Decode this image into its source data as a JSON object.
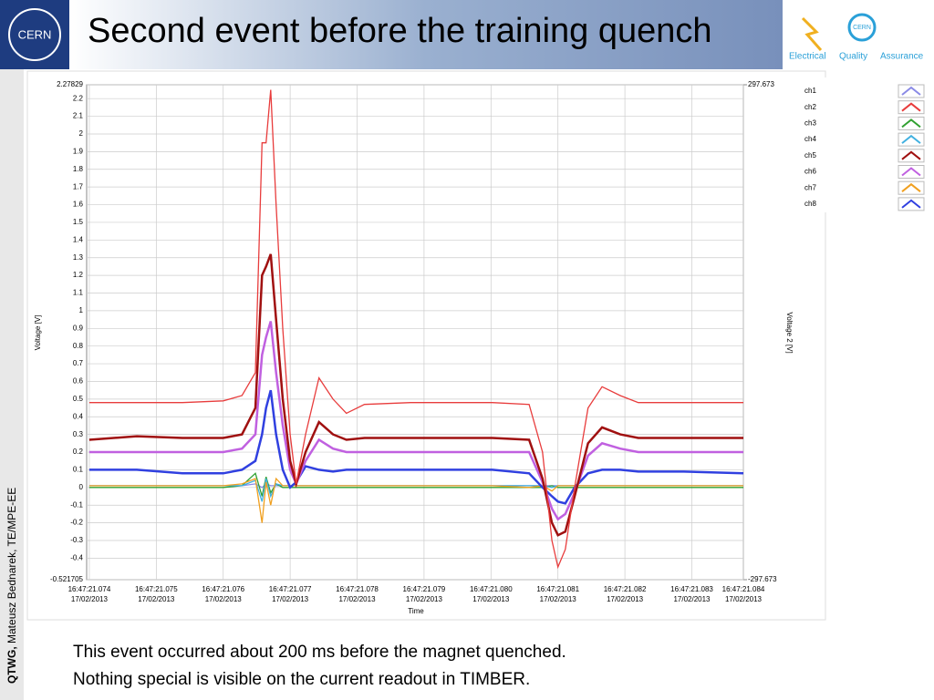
{
  "slide": {
    "title": "Second event before the training quench",
    "author_bold": "QTWG,",
    "author": "Mateusz Bednarek, TE/MPE-EE",
    "notes": [
      "This event occurred about 200 ms before the magnet quenched.",
      "Nothing special is visible on the current readout in TIMBER."
    ],
    "logo_left": "CERN",
    "logo_right": {
      "center": "CERN",
      "words": [
        "Electrical",
        "Quality",
        "Assurance"
      ]
    }
  },
  "chart_data": {
    "type": "line",
    "xlabel": "Time",
    "ylabel": "Voltage [V]",
    "y2label": "Voltage 2 [V]",
    "grid": true,
    "legend": "right",
    "x": [
      21.074,
      21.07471,
      21.07539,
      21.076,
      21.07628,
      21.07648,
      21.07658,
      21.07664,
      21.07671,
      21.07679,
      21.07689,
      21.077,
      21.07709,
      21.07723,
      21.07743,
      21.07764,
      21.07784,
      21.07811,
      21.0788,
      21.07948,
      21.08002,
      21.08057,
      21.08077,
      21.08091,
      21.081,
      21.08111,
      21.08125,
      21.08145,
      21.08166,
      21.08193,
      21.0822,
      21.08288,
      21.08377
    ],
    "xlim": [
      21.07396,
      21.08377
    ],
    "xticks": [
      {
        "value": 21.074,
        "label": "16:47:21.074",
        "date": "17/02/2013"
      },
      {
        "value": 21.075,
        "label": "16:47:21.075",
        "date": "17/02/2013"
      },
      {
        "value": 21.076,
        "label": "16:47:21.076",
        "date": "17/02/2013"
      },
      {
        "value": 21.077,
        "label": "16:47:21.077",
        "date": "17/02/2013"
      },
      {
        "value": 21.078,
        "label": "16:47:21.078",
        "date": "17/02/2013"
      },
      {
        "value": 21.079,
        "label": "16:47:21.079",
        "date": "17/02/2013"
      },
      {
        "value": 21.08,
        "label": "16:47:21.080",
        "date": "17/02/2013"
      },
      {
        "value": 21.081,
        "label": "16:47:21.081",
        "date": "17/02/2013"
      },
      {
        "value": 21.082,
        "label": "16:47:21.082",
        "date": "17/02/2013"
      },
      {
        "value": 21.083,
        "label": "16:47:21.083",
        "date": "17/02/2013"
      },
      {
        "value": 21.08377,
        "label": "16:47:21.084",
        "date": "17/02/2013"
      }
    ],
    "ylim": [
      -0.521705,
      2.27829
    ],
    "yticks": [
      -0.521705,
      -0.4,
      -0.3,
      -0.2,
      -0.1,
      0,
      0.1,
      0.2,
      0.3,
      0.4,
      0.5,
      0.6,
      0.7,
      0.8,
      0.9,
      1,
      1.1,
      1.2,
      1.3,
      1.4,
      1.5,
      1.6,
      1.7,
      1.8,
      1.9,
      2,
      2.1,
      2.2,
      2.27829
    ],
    "y2lim": [
      -297.673,
      297.673
    ],
    "y2ticks": [
      -297.673,
      297.673
    ],
    "series": [
      {
        "name": "ch1",
        "color": "#8a8ae6",
        "values": [
          0.01,
          0.01,
          0.01,
          0.01,
          0.01,
          0.02,
          0.0,
          0.02,
          0.01,
          0.01,
          0.01,
          0.01,
          0.01,
          0.01,
          0.01,
          0.01,
          0.01,
          0.01,
          0.01,
          0.01,
          0.01,
          0.01,
          0.01,
          0.01,
          0.01,
          0.01,
          0.01,
          0.01,
          0.01,
          0.01,
          0.01,
          0.01,
          0.01
        ]
      },
      {
        "name": "ch2",
        "color": "#e83c3c",
        "values": [
          0.48,
          0.48,
          0.48,
          0.49,
          0.52,
          0.65,
          1.95,
          1.95,
          2.25,
          1.6,
          0.9,
          0.3,
          0.02,
          0.3,
          0.62,
          0.5,
          0.42,
          0.47,
          0.48,
          0.48,
          0.48,
          0.47,
          0.2,
          -0.3,
          -0.45,
          -0.35,
          0.0,
          0.45,
          0.57,
          0.52,
          0.48,
          0.48,
          0.48
        ]
      },
      {
        "name": "ch3",
        "color": "#30a030",
        "values": [
          0.0,
          0.0,
          0.0,
          0.0,
          0.01,
          0.08,
          -0.05,
          0.06,
          -0.03,
          0.02,
          0.0,
          0.0,
          0.0,
          0.0,
          0.0,
          0.0,
          0.0,
          0.0,
          0.0,
          0.0,
          0.0,
          0.0,
          0.0,
          0.01,
          0.0,
          0.0,
          0.0,
          0.0,
          0.0,
          0.0,
          0.0,
          0.0,
          0.0
        ]
      },
      {
        "name": "ch4",
        "color": "#40b0e0",
        "values": [
          0.01,
          0.01,
          0.01,
          0.01,
          0.01,
          0.04,
          -0.08,
          0.05,
          -0.05,
          0.02,
          0.01,
          0.01,
          0.01,
          0.01,
          0.01,
          0.01,
          0.01,
          0.01,
          0.01,
          0.01,
          0.01,
          0.01,
          0.01,
          0.0,
          0.01,
          0.01,
          0.01,
          0.01,
          0.01,
          0.01,
          0.01,
          0.01,
          0.01
        ]
      },
      {
        "name": "ch5",
        "color": "#a01010",
        "values": [
          0.27,
          0.29,
          0.28,
          0.28,
          0.3,
          0.45,
          1.2,
          1.25,
          1.32,
          0.95,
          0.5,
          0.15,
          0.02,
          0.2,
          0.37,
          0.3,
          0.27,
          0.28,
          0.28,
          0.28,
          0.28,
          0.27,
          0.05,
          -0.2,
          -0.27,
          -0.25,
          -0.05,
          0.25,
          0.34,
          0.3,
          0.28,
          0.28,
          0.28
        ]
      },
      {
        "name": "ch6",
        "color": "#c060e0",
        "values": [
          0.2,
          0.2,
          0.2,
          0.2,
          0.22,
          0.3,
          0.75,
          0.85,
          0.94,
          0.65,
          0.35,
          0.1,
          0.02,
          0.15,
          0.27,
          0.22,
          0.2,
          0.2,
          0.2,
          0.2,
          0.2,
          0.2,
          0.03,
          -0.12,
          -0.18,
          -0.15,
          -0.03,
          0.18,
          0.25,
          0.22,
          0.2,
          0.2,
          0.2
        ]
      },
      {
        "name": "ch7",
        "color": "#f0a020",
        "values": [
          0.01,
          0.01,
          0.01,
          0.01,
          0.02,
          0.05,
          -0.2,
          0.03,
          -0.1,
          0.05,
          0.01,
          0.01,
          0.01,
          0.01,
          0.01,
          0.01,
          0.01,
          0.01,
          0.01,
          0.01,
          0.01,
          0.0,
          0.01,
          -0.02,
          0.01,
          0.01,
          0.01,
          0.01,
          0.01,
          0.01,
          0.01,
          0.01,
          0.01
        ]
      },
      {
        "name": "ch8",
        "color": "#3040e0",
        "values": [
          0.1,
          0.1,
          0.08,
          0.08,
          0.1,
          0.15,
          0.3,
          0.45,
          0.55,
          0.3,
          0.1,
          0.0,
          0.03,
          0.12,
          0.1,
          0.09,
          0.1,
          0.1,
          0.1,
          0.1,
          0.1,
          0.08,
          0.0,
          -0.05,
          -0.08,
          -0.09,
          0.0,
          0.08,
          0.1,
          0.1,
          0.09,
          0.09,
          0.08
        ]
      }
    ]
  }
}
